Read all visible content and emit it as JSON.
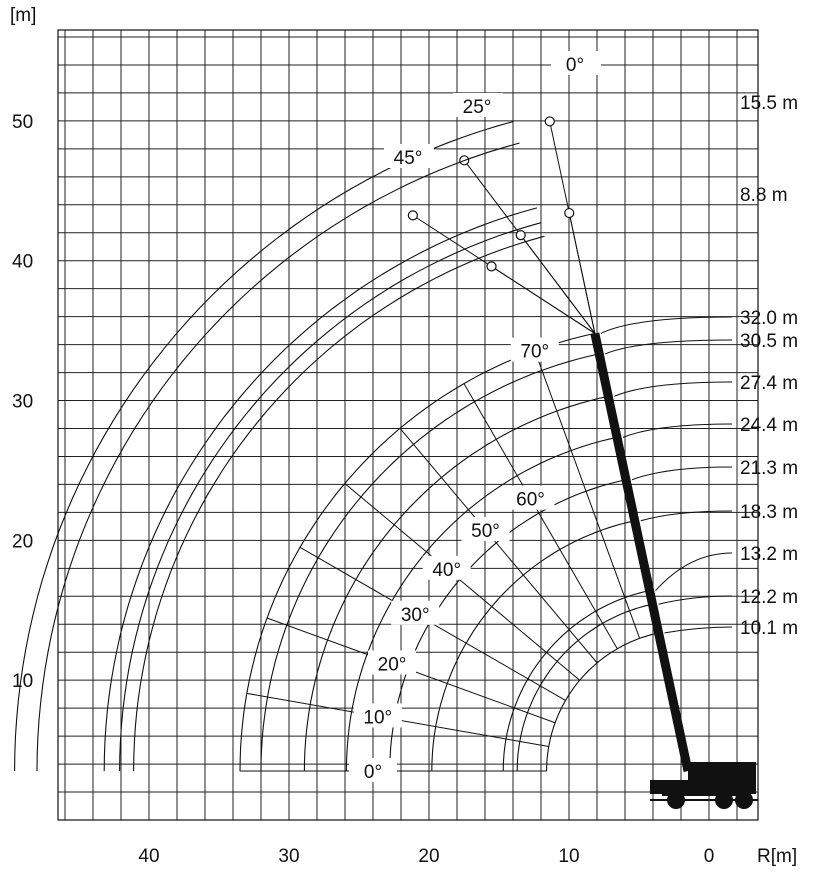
{
  "units": {
    "y_unit": "[m]",
    "x_unit": "R[m]"
  },
  "x_ticks": [
    {
      "value": 40,
      "label": "40"
    },
    {
      "value": 30,
      "label": "30"
    },
    {
      "value": 20,
      "label": "20"
    },
    {
      "value": 10,
      "label": "10"
    },
    {
      "value": 0,
      "label": "0"
    }
  ],
  "y_ticks": [
    {
      "value": 50,
      "label": "50"
    },
    {
      "value": 40,
      "label": "40"
    },
    {
      "value": 30,
      "label": "30"
    },
    {
      "value": 20,
      "label": "20"
    },
    {
      "value": 10,
      "label": "10"
    }
  ],
  "boom_lengths": [
    {
      "label": "32.0 m",
      "length_m": 32.0
    },
    {
      "label": "30.5 m",
      "length_m": 30.5
    },
    {
      "label": "27.4 m",
      "length_m": 27.4
    },
    {
      "label": "24.4 m",
      "length_m": 24.4
    },
    {
      "label": "21.3 m",
      "length_m": 21.3
    },
    {
      "label": "18.3 m",
      "length_m": 18.3
    },
    {
      "label": "13.2 m",
      "length_m": 13.2
    },
    {
      "label": "12.2 m",
      "length_m": 12.2
    },
    {
      "label": "10.1 m",
      "length_m": 10.1
    }
  ],
  "boom_angles": [
    {
      "label": "0°",
      "deg": 0
    },
    {
      "label": "10°",
      "deg": 10
    },
    {
      "label": "20°",
      "deg": 20
    },
    {
      "label": "30°",
      "deg": 30
    },
    {
      "label": "40°",
      "deg": 40
    },
    {
      "label": "50°",
      "deg": 50
    },
    {
      "label": "60°",
      "deg": 60
    },
    {
      "label": "70°",
      "deg": 70
    }
  ],
  "jib_lengths": [
    {
      "label": "15.5 m",
      "length_m": 15.5
    },
    {
      "label": "8.8 m",
      "length_m": 8.8
    }
  ],
  "jib_offsets": [
    {
      "label": "0°",
      "deg": 0
    },
    {
      "label": "25°",
      "deg": 25
    },
    {
      "label": "45°",
      "deg": 45
    }
  ],
  "chart_data": {
    "type": "range-diagram",
    "x_range": [
      -3.5,
      46.5
    ],
    "y_range": [
      0,
      56.5
    ],
    "pivot": {
      "x": 1.5,
      "y": 3.5
    },
    "max_boom_angle_deg": 78,
    "radius_label": "R[m]",
    "height_label": "[m]"
  },
  "colors": {
    "ink": "#111111",
    "background": "#ffffff"
  },
  "icons": {
    "crane": "mobile-crane-icon"
  }
}
